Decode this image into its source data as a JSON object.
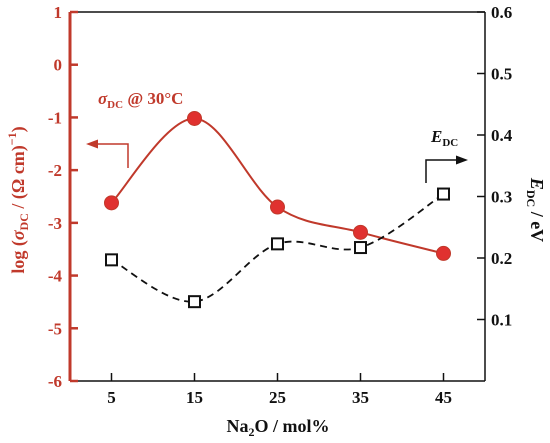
{
  "chart_data": {
    "type": "scatter",
    "x": [
      5,
      15,
      25,
      35,
      45
    ],
    "xlim": [
      0,
      50
    ],
    "x_ticks": [
      "5",
      "15",
      "25",
      "35",
      "45"
    ],
    "xlabel": {
      "main": "Na",
      "sub": "2",
      "rest": "O / mol%"
    },
    "left_axis": {
      "color": "#c0392b",
      "ylim": [
        -6,
        1
      ],
      "ticks": [
        "-6",
        "-5",
        "-4",
        "-3",
        "-2",
        "-1",
        "0",
        "1"
      ],
      "label": {
        "pre": "log (",
        "sigma": "σ",
        "sub": "DC",
        "mid": " / (Ω cm)",
        "sup": "−1",
        "post": ")"
      }
    },
    "right_axis": {
      "color": "#111111",
      "ylim": [
        0,
        0.6
      ],
      "ticks": [
        "0.1",
        "0.2",
        "0.3",
        "0.4",
        "0.5",
        "0.6"
      ],
      "label": {
        "main": "E",
        "sub": "DC",
        "rest": " / eV"
      }
    },
    "series": [
      {
        "axis": "left",
        "marker": "filled-circle",
        "line": "solid-smooth",
        "color": "#c0392b",
        "values": [
          -2.62,
          -1.02,
          -2.7,
          -3.18,
          -3.58
        ]
      },
      {
        "axis": "right",
        "marker": "open-square",
        "line": "dashed",
        "color": "#111111",
        "values": [
          0.197,
          0.129,
          0.223,
          0.217,
          0.304
        ]
      }
    ],
    "annotations": {
      "sigma": {
        "sigma": "σ",
        "sub": "DC",
        "rest": " @ 30°C",
        "color": "#c0392b"
      },
      "edc": {
        "main": "E",
        "sub": "DC",
        "color": "#111111"
      }
    }
  }
}
